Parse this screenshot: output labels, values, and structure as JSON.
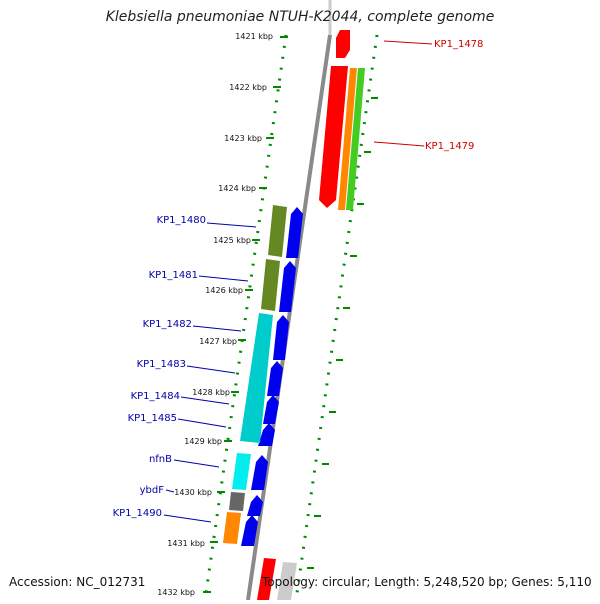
{
  "title": "Klebsiella pneumoniae NTUH-K2044, complete genome",
  "accession_label": "Accession: NC_012731",
  "topology_label": "Topology: circular; Length: 5,248,520 bp; Genes: 5,110",
  "scale_labels": [
    "1421 kbp",
    "1422 kbp",
    "1423 kbp",
    "1424 kbp",
    "1425 kbp",
    "1426 kbp",
    "1427 kbp",
    "1428 kbp",
    "1429 kbp",
    "1430 kbp",
    "1431 kbp",
    "1432 kbp"
  ],
  "genes": [
    {
      "label": "KP1_1478",
      "color": "#cc0000"
    },
    {
      "label": "KP1_1479",
      "color": "#cc0000"
    },
    {
      "label": "KP1_1480",
      "color": "#0000aa"
    },
    {
      "label": "KP1_1481",
      "color": "#0000aa"
    },
    {
      "label": "KP1_1482",
      "color": "#0000aa"
    },
    {
      "label": "KP1_1483",
      "color": "#0000aa"
    },
    {
      "label": "KP1_1484",
      "color": "#0000aa"
    },
    {
      "label": "KP1_1485",
      "color": "#0000aa"
    },
    {
      "label": "nfnB",
      "color": "#0000aa"
    },
    {
      "label": "ybdF",
      "color": "#0000aa"
    },
    {
      "label": "KP1_1490",
      "color": "#0000aa"
    }
  ],
  "colors": {
    "scale_dots": "#008800",
    "backbone": "#888888",
    "reverse_cds": "#ff0000",
    "forward_cds": "#0000ee",
    "orange_feature": "#ff8800",
    "green_feature": "#44cc22",
    "olive_feature": "#668822",
    "cyan_feature": "#00cccc",
    "grey_feature": "#666666"
  }
}
